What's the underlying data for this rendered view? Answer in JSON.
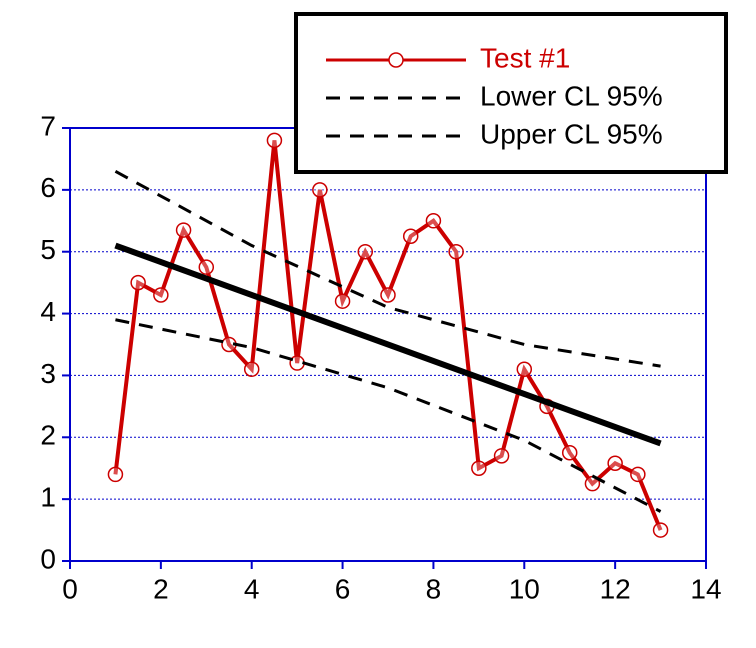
{
  "chart_data": {
    "type": "line",
    "series": [
      {
        "name": "Test #1",
        "color": "#cc0000",
        "marker": "circle",
        "x": [
          1,
          1.5,
          2,
          2.5,
          3,
          3.5,
          4,
          4.5,
          5,
          5.5,
          6,
          6.5,
          7,
          7.5,
          8,
          8.5,
          9,
          9.5,
          10,
          10.5,
          11,
          11.5,
          12,
          12.5,
          13
        ],
        "values": [
          1.4,
          4.5,
          4.3,
          5.35,
          4.75,
          3.5,
          3.1,
          6.8,
          3.2,
          6.0,
          4.2,
          5.0,
          4.3,
          5.25,
          5.5,
          5.0,
          1.5,
          1.7,
          3.1,
          2.5,
          1.75,
          1.25,
          1.58,
          1.4,
          0.5
        ]
      },
      {
        "name": "Lower CL 95%",
        "color": "#000000",
        "dash": true,
        "x": [
          1,
          4,
          7,
          10,
          13
        ],
        "values": [
          3.9,
          3.45,
          2.8,
          1.95,
          0.8
        ]
      },
      {
        "name": "Upper CL 95%",
        "color": "#000000",
        "dash": true,
        "x": [
          1,
          4,
          7,
          10,
          13
        ],
        "values": [
          6.3,
          5.1,
          4.1,
          3.5,
          3.15
        ]
      },
      {
        "color": "#000000",
        "x": [
          1,
          13
        ],
        "values": [
          5.1,
          1.9
        ]
      }
    ],
    "xlim": [
      0,
      14
    ],
    "xticks": [
      0,
      2,
      4,
      6,
      8,
      10,
      12,
      14
    ],
    "ylim": [
      0,
      7
    ],
    "yticks": [
      0,
      1,
      2,
      3,
      4,
      5,
      6,
      7
    ],
    "grid": true,
    "legend": "top-right"
  }
}
